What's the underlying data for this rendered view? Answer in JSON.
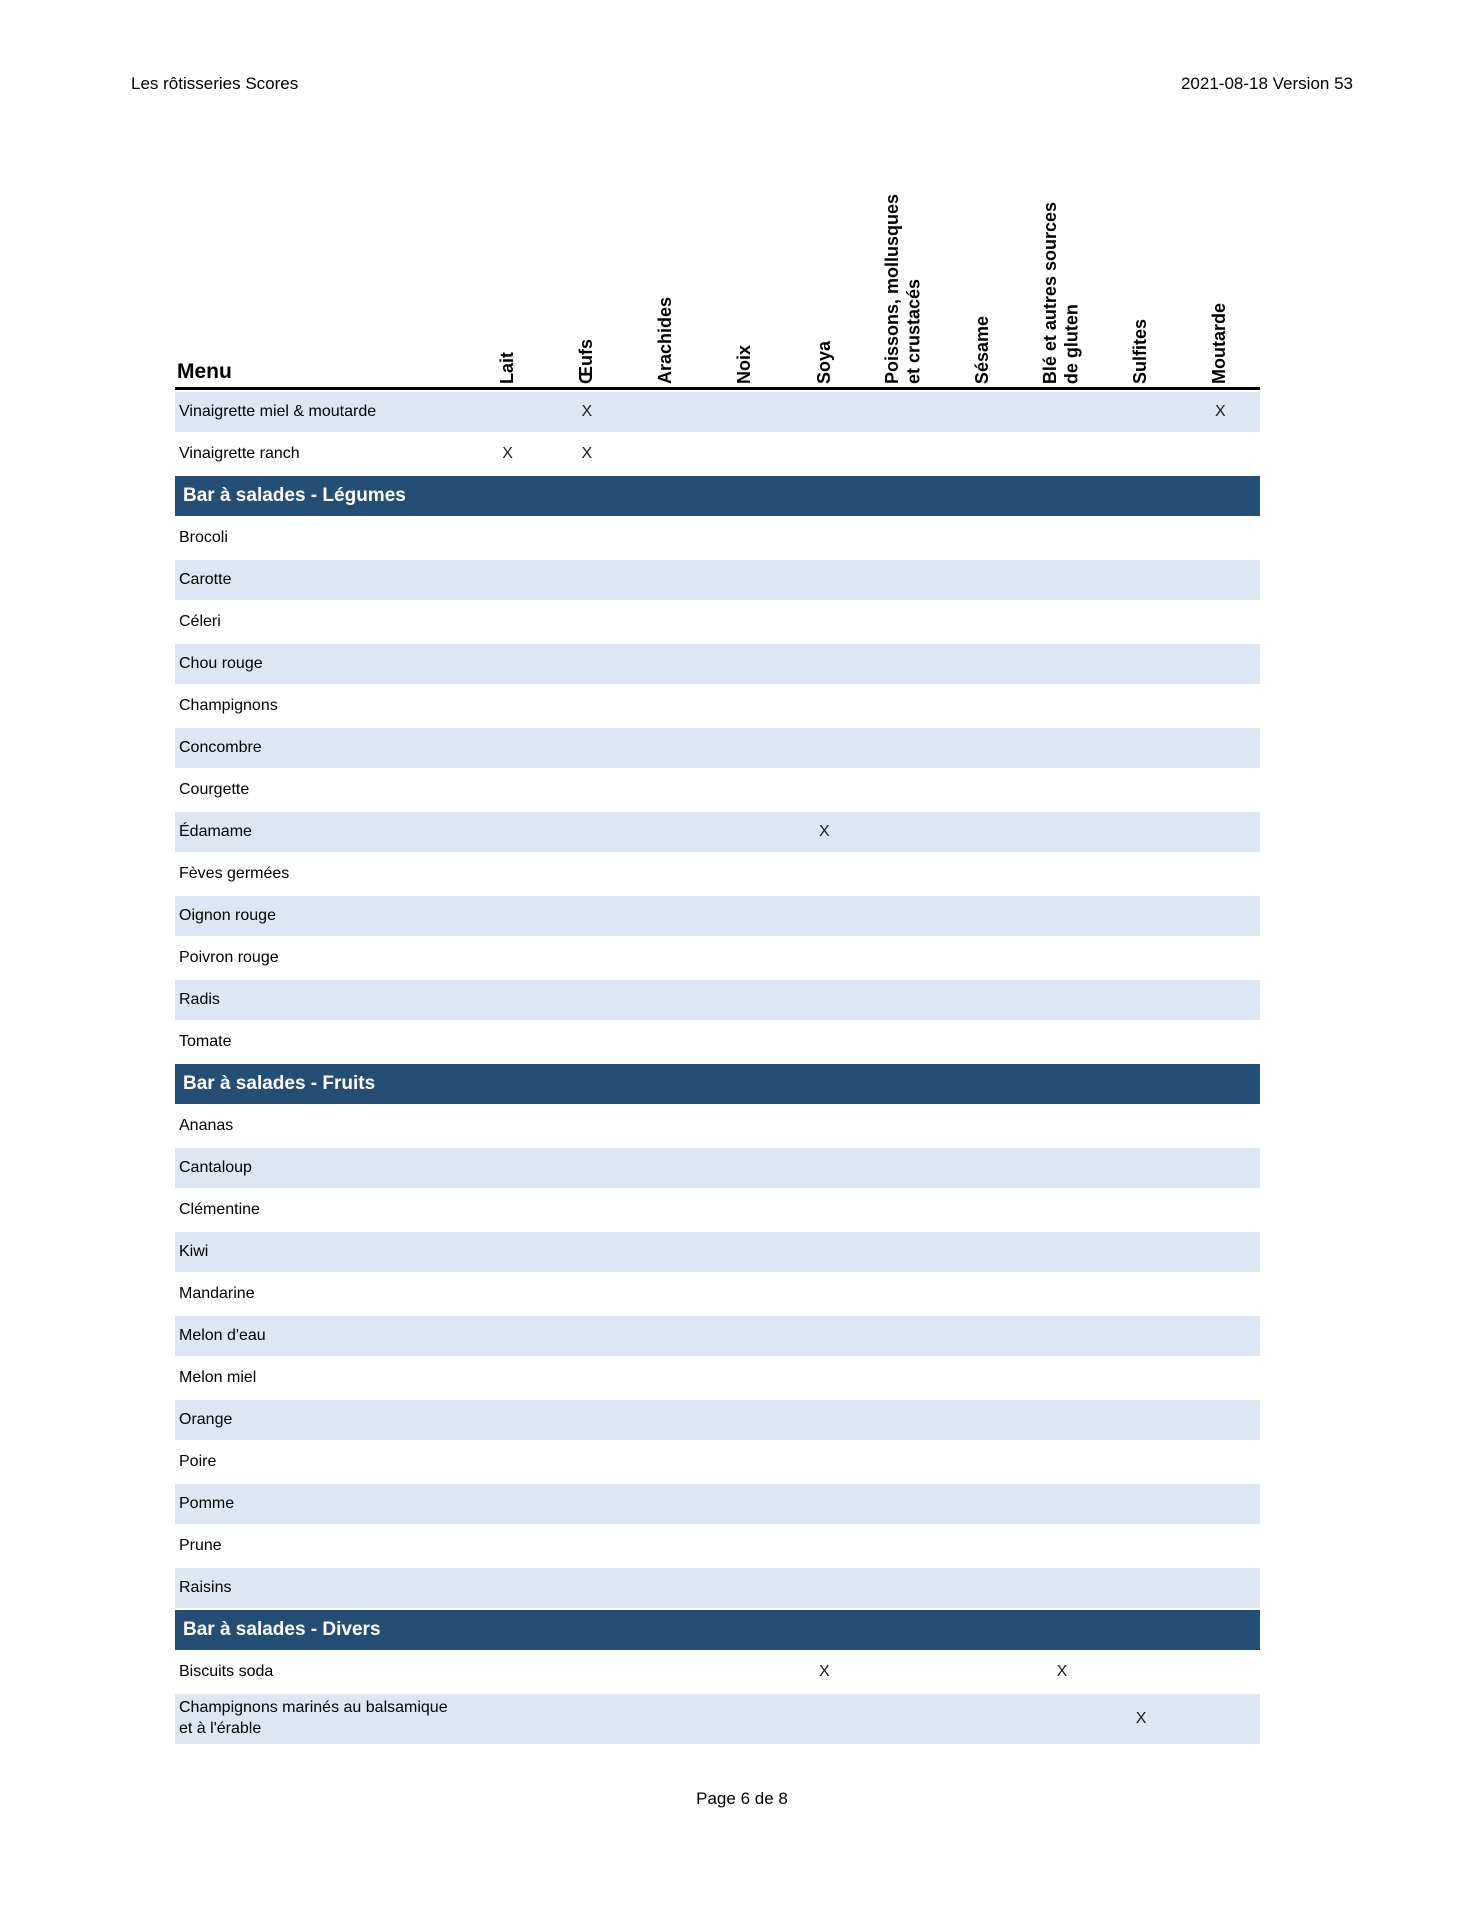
{
  "page": {
    "header_left": "Les rôtisseries Scores",
    "header_right": "2021-08-18 Version 53",
    "footer": "Page 6 de 8"
  },
  "colors": {
    "section_header_bg": "#254E77",
    "row_shade": "#DEE6F1",
    "text": "#000000"
  },
  "table": {
    "menu_label": "Menu",
    "mark": "X",
    "columns": [
      "Lait",
      "Œufs",
      "Arachides",
      "Noix",
      "Soya",
      "Poissons, mollusques\net crustacés",
      "Sésame",
      "Blé et autres sources\nde gluten",
      "Sulfites",
      "Moutarde"
    ],
    "groups": [
      {
        "section": null,
        "rows": [
          {
            "label": "Vinaigrette miel & moutarde",
            "marks": [
              1,
              9
            ]
          },
          {
            "label": "Vinaigrette ranch",
            "marks": [
              0,
              1
            ]
          }
        ]
      },
      {
        "section": "Bar à salades - Légumes",
        "rows": [
          {
            "label": "Brocoli",
            "marks": []
          },
          {
            "label": "Carotte",
            "marks": []
          },
          {
            "label": "Céleri",
            "marks": []
          },
          {
            "label": "Chou rouge",
            "marks": []
          },
          {
            "label": "Champignons",
            "marks": []
          },
          {
            "label": "Concombre",
            "marks": []
          },
          {
            "label": "Courgette",
            "marks": []
          },
          {
            "label": "Édamame",
            "marks": [
              4
            ]
          },
          {
            "label": "Fèves germées",
            "marks": []
          },
          {
            "label": "Oignon rouge",
            "marks": []
          },
          {
            "label": "Poivron rouge",
            "marks": []
          },
          {
            "label": "Radis",
            "marks": []
          },
          {
            "label": "Tomate",
            "marks": []
          }
        ]
      },
      {
        "section": "Bar à salades - Fruits",
        "rows": [
          {
            "label": "Ananas",
            "marks": []
          },
          {
            "label": "Cantaloup",
            "marks": []
          },
          {
            "label": "Clémentine",
            "marks": []
          },
          {
            "label": "Kiwi",
            "marks": []
          },
          {
            "label": "Mandarine",
            "marks": []
          },
          {
            "label": "Melon d'eau",
            "marks": []
          },
          {
            "label": "Melon miel",
            "marks": []
          },
          {
            "label": "Orange",
            "marks": []
          },
          {
            "label": "Poire",
            "marks": []
          },
          {
            "label": "Pomme",
            "marks": []
          },
          {
            "label": "Prune",
            "marks": []
          },
          {
            "label": "Raisins",
            "marks": []
          }
        ]
      },
      {
        "section": "Bar à salades - Divers",
        "rows": [
          {
            "label": "Biscuits soda",
            "marks": [
              4,
              7
            ]
          },
          {
            "label": "Champignons marinés au balsamique\net à l'érable",
            "marks": [
              8
            ]
          }
        ]
      }
    ]
  }
}
